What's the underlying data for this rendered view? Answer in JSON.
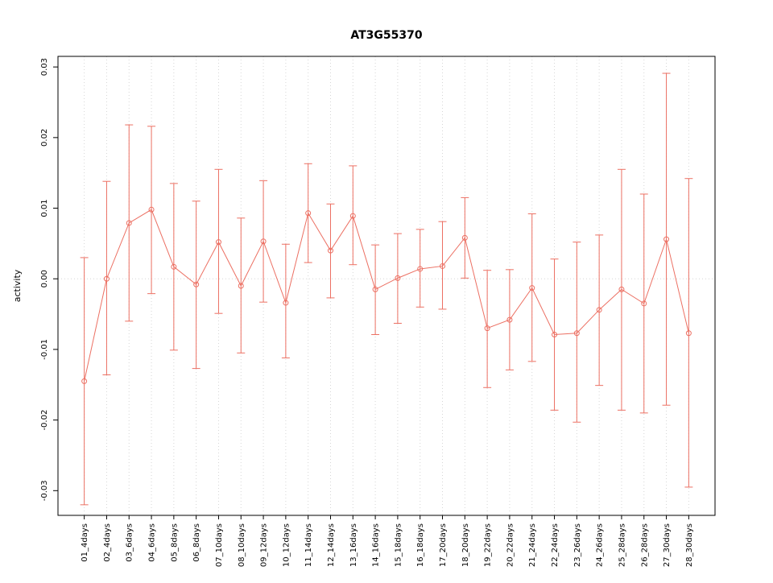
{
  "chart_data": {
    "type": "line",
    "title": "AT3G55370",
    "xlabel": "",
    "ylabel": "activity",
    "ylim": [
      -0.0335,
      0.0315
    ],
    "ytick_values": [
      -0.03,
      -0.02,
      -0.01,
      0.0,
      0.01,
      0.02,
      0.03
    ],
    "ytick_labels": [
      "-0.03",
      "-0.02",
      "-0.01",
      "0.00",
      "0.01",
      "0.02",
      "0.03"
    ],
    "grid": "vertical-dotted-per-category-plus-zero-line",
    "legend": "none",
    "marker": "open-circle",
    "error_bars": true,
    "categories": [
      "01_4days",
      "02_4days",
      "03_6days",
      "04_6days",
      "05_8days",
      "06_8days",
      "07_10days",
      "08_10days",
      "09_12days",
      "10_12days",
      "11_14days",
      "12_14days",
      "13_16days",
      "14_16days",
      "15_18days",
      "16_18days",
      "17_20days",
      "18_20days",
      "19_22days",
      "20_22days",
      "21_24days",
      "22_24days",
      "23_26days",
      "24_26days",
      "25_28days",
      "26_28days",
      "27_30days",
      "28_30days"
    ],
    "values": [
      -0.0145,
      0.0,
      0.0079,
      0.0098,
      0.0017,
      -0.0008,
      0.0052,
      -0.001,
      0.0053,
      -0.0034,
      0.0093,
      0.004,
      0.0089,
      -0.0015,
      0.0001,
      0.0014,
      0.0018,
      0.0058,
      -0.007,
      -0.0058,
      -0.0013,
      -0.0079,
      -0.0077,
      -0.0044,
      -0.0015,
      -0.0035,
      0.0056,
      -0.0077
    ],
    "upper": [
      0.003,
      0.0138,
      0.0218,
      0.0216,
      0.0135,
      0.011,
      0.0155,
      0.0086,
      0.0139,
      0.0049,
      0.0163,
      0.0106,
      0.016,
      0.0048,
      0.0064,
      0.007,
      0.0081,
      0.0115,
      0.0012,
      0.0013,
      0.0092,
      0.0028,
      0.0052,
      0.0062,
      0.0155,
      0.012,
      0.0291,
      0.0142
    ],
    "lower": [
      -0.032,
      -0.0136,
      -0.006,
      -0.0021,
      -0.0101,
      -0.0127,
      -0.0049,
      -0.0105,
      -0.0033,
      -0.0112,
      0.0023,
      -0.0027,
      0.002,
      -0.0079,
      -0.0063,
      -0.004,
      -0.0043,
      0.0001,
      -0.0154,
      -0.0129,
      -0.0117,
      -0.0186,
      -0.0203,
      -0.0151,
      -0.0186,
      -0.019,
      -0.0179,
      -0.0295
    ],
    "colors": {
      "series": "#ec7063",
      "grid": "#d6d6d6",
      "zero_line": "#d6d6d6",
      "box": "#000000",
      "background": "#ffffff"
    }
  }
}
